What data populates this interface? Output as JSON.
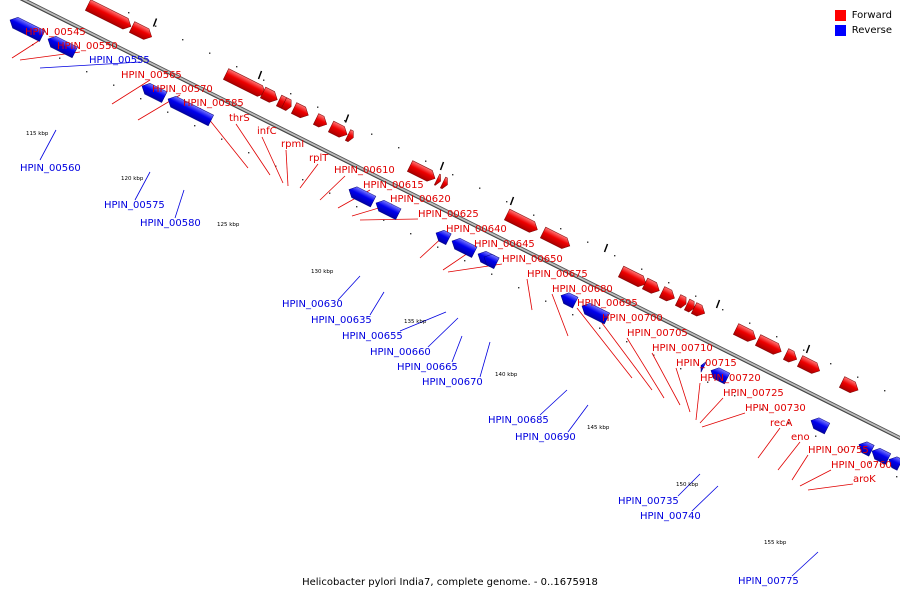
{
  "legend": {
    "forward_label": "Forward",
    "reverse_label": "Reverse",
    "forward_color": "#ff0000",
    "reverse_color": "#0000ff"
  },
  "caption": "Helicobacter pylori India7, complete genome. - 0..1675918",
  "scale_labels": [
    "115 kbp",
    "120 kbp",
    "125 kbp",
    "130 kbp",
    "135 kbp",
    "140 kbp",
    "145 kbp",
    "150 kbp",
    "155 kbp"
  ],
  "forward_genes": [
    "HPIN_00545",
    "HPIN_00550",
    "HPIN_00565",
    "HPIN_00570",
    "HPIN_00585",
    "thrS",
    "infC",
    "rpmI",
    "rplT",
    "HPIN_00610",
    "HPIN_00615",
    "HPIN_00620",
    "HPIN_00625",
    "HPIN_00640",
    "HPIN_00645",
    "HPIN_00650",
    "HPIN_00675",
    "HPIN_00680",
    "HPIN_00695",
    "HPIN_00700",
    "HPIN_00705",
    "HPIN_00710",
    "HPIN_00715",
    "HPIN_00720",
    "HPIN_00725",
    "HPIN_00730",
    "recA",
    "eno",
    "HPIN_00755",
    "HPIN_00760",
    "aroK"
  ],
  "reverse_genes": [
    "HPIN_00555",
    "HPIN_00560",
    "HPIN_00575",
    "HPIN_00580",
    "HPIN_00630",
    "HPIN_00635",
    "HPIN_00655",
    "HPIN_00660",
    "HPIN_00665",
    "HPIN_00670",
    "HPIN_00685",
    "HPIN_00690",
    "HPIN_00735",
    "HPIN_00740",
    "HPIN_00775"
  ]
}
